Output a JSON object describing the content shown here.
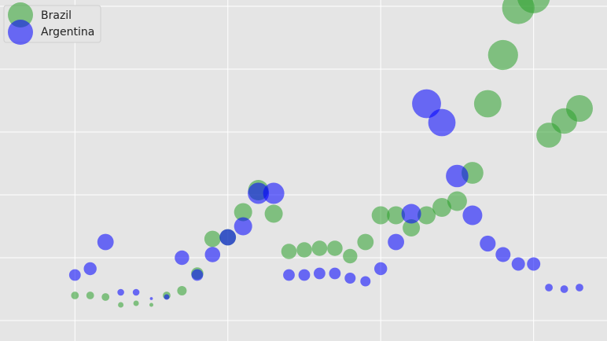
{
  "chart_data": {
    "type": "scatter",
    "grid": true,
    "legend_position": "top-left",
    "xlim": [
      -4.9,
      34.8
    ],
    "ylim": [
      -1.3,
      20.4
    ],
    "series": [
      {
        "name": "Brazil",
        "color": "#2ca02c",
        "points": [
          {
            "x": 0,
            "y": 1.6,
            "s": 0.2
          },
          {
            "x": 1,
            "y": 1.6,
            "s": 0.2
          },
          {
            "x": 2,
            "y": 1.5,
            "s": 0.2
          },
          {
            "x": 3,
            "y": 1.0,
            "s": 0.1
          },
          {
            "x": 4,
            "y": 1.1,
            "s": 0.1
          },
          {
            "x": 5,
            "y": 1.0,
            "s": 0.05
          },
          {
            "x": 6,
            "y": 1.6,
            "s": 0.2
          },
          {
            "x": 7,
            "y": 1.9,
            "s": 0.3
          },
          {
            "x": 8,
            "y": 3.0,
            "s": 0.5
          },
          {
            "x": 9,
            "y": 5.2,
            "s": 0.9
          },
          {
            "x": 10,
            "y": 5.3,
            "s": 0.9
          },
          {
            "x": 11,
            "y": 6.9,
            "s": 1.1
          },
          {
            "x": 12,
            "y": 8.3,
            "s": 1.4
          },
          {
            "x": 13,
            "y": 6.8,
            "s": 1.1
          },
          {
            "x": 14,
            "y": 4.4,
            "s": 0.8
          },
          {
            "x": 15,
            "y": 4.5,
            "s": 0.8
          },
          {
            "x": 16,
            "y": 4.6,
            "s": 0.8
          },
          {
            "x": 17,
            "y": 4.6,
            "s": 0.8
          },
          {
            "x": 18,
            "y": 4.1,
            "s": 0.7
          },
          {
            "x": 19,
            "y": 5.0,
            "s": 0.9
          },
          {
            "x": 20,
            "y": 6.7,
            "s": 1.1
          },
          {
            "x": 21,
            "y": 6.7,
            "s": 1.1
          },
          {
            "x": 22,
            "y": 5.9,
            "s": 1.0
          },
          {
            "x": 23,
            "y": 6.7,
            "s": 1.1
          },
          {
            "x": 24,
            "y": 7.2,
            "s": 1.2
          },
          {
            "x": 25,
            "y": 7.6,
            "s": 1.3
          },
          {
            "x": 26,
            "y": 9.4,
            "s": 1.6
          },
          {
            "x": 27,
            "y": 13.8,
            "s": 2.5
          },
          {
            "x": 28,
            "y": 16.9,
            "s": 3.0
          },
          {
            "x": 29,
            "y": 19.9,
            "s": 3.5
          },
          {
            "x": 30,
            "y": 20.6,
            "s": 3.6
          },
          {
            "x": 31,
            "y": 11.8,
            "s": 2.1
          },
          {
            "x": 32,
            "y": 12.7,
            "s": 2.2
          },
          {
            "x": 33,
            "y": 13.5,
            "s": 2.4
          }
        ]
      },
      {
        "name": "Argentina",
        "color": "#0000ff",
        "points": [
          {
            "x": 0,
            "y": 2.9,
            "s": 0.45
          },
          {
            "x": 1,
            "y": 3.3,
            "s": 0.55
          },
          {
            "x": 2,
            "y": 5.0,
            "s": 0.9
          },
          {
            "x": 3,
            "y": 1.8,
            "s": 0.15
          },
          {
            "x": 4,
            "y": 1.8,
            "s": 0.15
          },
          {
            "x": 5,
            "y": 1.4,
            "s": 0.03
          },
          {
            "x": 6,
            "y": 1.5,
            "s": 0.1
          },
          {
            "x": 7,
            "y": 4.0,
            "s": 0.7
          },
          {
            "x": 8,
            "y": 2.9,
            "s": 0.45
          },
          {
            "x": 9,
            "y": 4.2,
            "s": 0.8
          },
          {
            "x": 10,
            "y": 5.3,
            "s": 0.9
          },
          {
            "x": 11,
            "y": 6.0,
            "s": 1.1
          },
          {
            "x": 12,
            "y": 8.1,
            "s": 1.5
          },
          {
            "x": 13,
            "y": 8.1,
            "s": 1.5
          },
          {
            "x": 14,
            "y": 2.9,
            "s": 0.45
          },
          {
            "x": 15,
            "y": 2.9,
            "s": 0.45
          },
          {
            "x": 16,
            "y": 3.0,
            "s": 0.45
          },
          {
            "x": 17,
            "y": 3.0,
            "s": 0.45
          },
          {
            "x": 18,
            "y": 2.7,
            "s": 0.4
          },
          {
            "x": 19,
            "y": 2.5,
            "s": 0.35
          },
          {
            "x": 20,
            "y": 3.3,
            "s": 0.55
          },
          {
            "x": 21,
            "y": 5.0,
            "s": 0.9
          },
          {
            "x": 22,
            "y": 6.8,
            "s": 1.3
          },
          {
            "x": 23,
            "y": 13.8,
            "s": 2.8
          },
          {
            "x": 24,
            "y": 12.6,
            "s": 2.5
          },
          {
            "x": 25,
            "y": 9.2,
            "s": 1.7
          },
          {
            "x": 26,
            "y": 6.7,
            "s": 1.3
          },
          {
            "x": 27,
            "y": 4.9,
            "s": 0.85
          },
          {
            "x": 28,
            "y": 4.2,
            "s": 0.75
          },
          {
            "x": 29,
            "y": 3.6,
            "s": 0.6
          },
          {
            "x": 30,
            "y": 3.6,
            "s": 0.6
          },
          {
            "x": 31,
            "y": 2.1,
            "s": 0.2
          },
          {
            "x": 32,
            "y": 2.0,
            "s": 0.2
          },
          {
            "x": 33,
            "y": 2.1,
            "s": 0.2
          }
        ]
      }
    ],
    "grid_x": [
      0,
      10,
      20,
      30
    ],
    "grid_y": [
      0,
      4,
      8,
      12,
      16,
      20
    ]
  }
}
